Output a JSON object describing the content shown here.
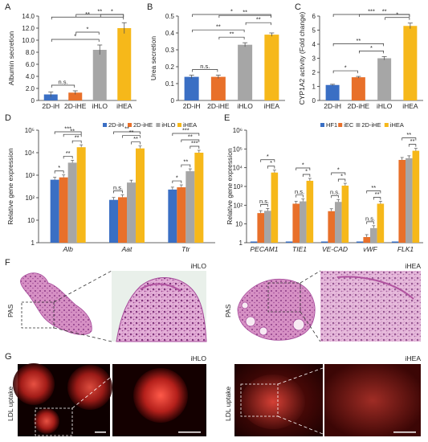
{
  "chart_data": [
    {
      "id": "A",
      "type": "bar",
      "panel_label": "A",
      "categories": [
        "2D-iH",
        "2D-iHE",
        "iHLO",
        "iHEA"
      ],
      "values": [
        1.0,
        1.3,
        8.4,
        12.0
      ],
      "errors": [
        0.4,
        0.3,
        0.8,
        0.9
      ],
      "colors": [
        "#3a6fc4",
        "#e8702a",
        "#a6a6a6",
        "#f6b81a"
      ],
      "ylabel": "Albumin secretion",
      "ylim": [
        0,
        14
      ],
      "yticks": [
        "0",
        "2.0",
        "4.0",
        "6.0",
        "8.0",
        "10.0",
        "12.0",
        "14.0"
      ],
      "ytick_values": [
        0,
        2,
        4,
        6,
        8,
        10,
        12,
        14
      ],
      "scale": "linear",
      "brackets": [
        {
          "from": 0,
          "to": 1,
          "label": "n.s."
        },
        {
          "from": 0,
          "to": 2,
          "label": "*"
        },
        {
          "from": 1,
          "to": 2,
          "label": "*"
        },
        {
          "from": 0,
          "to": 3,
          "label": "**"
        },
        {
          "from": 1,
          "to": 3,
          "label": "**"
        },
        {
          "from": 2,
          "to": 3,
          "label": "*"
        }
      ]
    },
    {
      "id": "B",
      "type": "bar",
      "panel_label": "B",
      "categories": [
        "2D-iH",
        "2D-iHE",
        "iHLO",
        "iHEA"
      ],
      "values": [
        0.14,
        0.14,
        0.33,
        0.39
      ],
      "errors": [
        0.01,
        0.01,
        0.012,
        0.01
      ],
      "colors": [
        "#3a6fc4",
        "#e8702a",
        "#a6a6a6",
        "#f6b81a"
      ],
      "ylabel": "Urea secretion",
      "ylim": [
        0,
        0.5
      ],
      "yticks": [
        "0",
        "0.1",
        "0.2",
        "0.3",
        "0.4",
        "0.5"
      ],
      "ytick_values": [
        0,
        0.1,
        0.2,
        0.3,
        0.4,
        0.5
      ],
      "scale": "linear",
      "brackets": [
        {
          "from": 0,
          "to": 1,
          "label": "n.s."
        },
        {
          "from": 1,
          "to": 2,
          "label": "**"
        },
        {
          "from": 0,
          "to": 2,
          "label": "**"
        },
        {
          "from": 2,
          "to": 3,
          "label": "**"
        },
        {
          "from": 1,
          "to": 3,
          "label": "**"
        },
        {
          "from": 0,
          "to": 3,
          "label": "*"
        }
      ]
    },
    {
      "id": "C",
      "type": "bar",
      "panel_label": "C",
      "categories": [
        "2D-iH",
        "2D-iHE",
        "iHLO",
        "iHEA"
      ],
      "values": [
        1.1,
        1.65,
        3.0,
        5.3
      ],
      "errors": [
        0.05,
        0.06,
        0.12,
        0.2
      ],
      "colors": [
        "#3a6fc4",
        "#e8702a",
        "#a6a6a6",
        "#f6b81a"
      ],
      "ylabel": "CYP1A2 activity (Fold change)",
      "ylim": [
        0,
        6
      ],
      "yticks": [
        "0",
        "1",
        "2",
        "3",
        "4",
        "5",
        "6"
      ],
      "ytick_values": [
        0,
        1,
        2,
        3,
        4,
        5,
        6
      ],
      "scale": "linear",
      "brackets": [
        {
          "from": 0,
          "to": 1,
          "label": "*"
        },
        {
          "from": 1,
          "to": 2,
          "label": "*"
        },
        {
          "from": 0,
          "to": 2,
          "label": "**"
        },
        {
          "from": 2,
          "to": 3,
          "label": "*"
        },
        {
          "from": 1,
          "to": 3,
          "label": "**"
        },
        {
          "from": 0,
          "to": 3,
          "label": "***"
        }
      ]
    },
    {
      "id": "D",
      "type": "bar",
      "panel_label": "D",
      "groups": [
        "Alb",
        "Aat",
        "Ttr"
      ],
      "series": [
        {
          "name": "2D-iH",
          "color": "#3a6fc4",
          "values": [
            630,
            80,
            230
          ]
        },
        {
          "name": "2D-iHE",
          "color": "#e8702a",
          "values": [
            800,
            105,
            290
          ]
        },
        {
          "name": "iHLO",
          "color": "#a6a6a6",
          "values": [
            3600,
            470,
            1500
          ]
        },
        {
          "name": "iHEA",
          "color": "#f6b81a",
          "values": [
            17500,
            15500,
            10000
          ]
        }
      ],
      "ylabel": "Relative gene expression",
      "ylim": [
        1,
        100000
      ],
      "yticks": [
        "1",
        "10",
        "10²",
        "10³",
        "10⁴",
        "10⁵"
      ],
      "ytick_values": [
        1,
        10,
        100,
        1000,
        10000,
        100000
      ],
      "scale": "log",
      "group_brackets": [
        [
          {
            "from": 0,
            "to": 1,
            "label": "*"
          },
          {
            "from": 1,
            "to": 2,
            "label": "**"
          },
          {
            "from": 2,
            "to": 3,
            "label": "**"
          },
          {
            "from": 1,
            "to": 3,
            "label": "**"
          },
          {
            "from": 0,
            "to": 3,
            "label": "***"
          }
        ],
        [
          {
            "from": 0,
            "to": 1,
            "label": "n.s."
          },
          {
            "from": 2,
            "to": 3,
            "label": "**"
          },
          {
            "from": 1,
            "to": 3,
            "label": "**"
          },
          {
            "from": 0,
            "to": 3,
            "label": "**"
          }
        ],
        [
          {
            "from": 0,
            "to": 1,
            "label": "*"
          },
          {
            "from": 1,
            "to": 2,
            "label": "**"
          },
          {
            "from": 2,
            "to": 3,
            "label": "***"
          },
          {
            "from": 1,
            "to": 3,
            "label": "**"
          },
          {
            "from": 0,
            "to": 3,
            "label": "***"
          }
        ]
      ]
    },
    {
      "id": "E",
      "type": "bar",
      "panel_label": "E",
      "groups": [
        "PECAM1",
        "TIE1",
        "VE-CAD",
        "vWF",
        "FLK1"
      ],
      "series": [
        {
          "name": "HF1",
          "color": "#3a6fc4",
          "values": [
            1,
            1,
            1,
            1,
            1
          ]
        },
        {
          "name": "iEC",
          "color": "#e8702a",
          "values": [
            38,
            120,
            48,
            2,
            26000
          ]
        },
        {
          "name": "2D-iHE",
          "color": "#a6a6a6",
          "values": [
            50,
            160,
            150,
            6,
            32000
          ]
        },
        {
          "name": "iHEA",
          "color": "#f6b81a",
          "values": [
            5500,
            2000,
            1100,
            120,
            80000
          ]
        }
      ],
      "ylabel": "Relative gene expression",
      "ylim": [
        1,
        1000000
      ],
      "yticks": [
        "1",
        "10",
        "10²",
        "10³",
        "10⁴",
        "10⁵",
        "10⁶"
      ],
      "ytick_values": [
        1,
        10,
        100,
        1000,
        10000,
        100000,
        1000000
      ],
      "scale": "log",
      "group_brackets": [
        [
          {
            "from": 1,
            "to": 2,
            "label": "n.s."
          },
          {
            "from": 2,
            "to": 3,
            "label": "*"
          },
          {
            "from": 1,
            "to": 3,
            "label": "*"
          }
        ],
        [
          {
            "from": 1,
            "to": 2,
            "label": "n.s."
          },
          {
            "from": 2,
            "to": 3,
            "label": "*"
          },
          {
            "from": 1,
            "to": 3,
            "label": "*"
          }
        ],
        [
          {
            "from": 1,
            "to": 2,
            "label": "n.s."
          },
          {
            "from": 2,
            "to": 3,
            "label": "*"
          },
          {
            "from": 1,
            "to": 3,
            "label": "*"
          }
        ],
        [
          {
            "from": 1,
            "to": 2,
            "label": "n.s."
          },
          {
            "from": 2,
            "to": 3,
            "label": "**"
          },
          {
            "from": 1,
            "to": 3,
            "label": "**"
          }
        ],
        [
          {
            "from": 2,
            "to": 3,
            "label": "**"
          },
          {
            "from": 1,
            "to": 3,
            "label": "**"
          }
        ]
      ]
    }
  ],
  "image_panels": {
    "F": {
      "label": "F",
      "side_label": "PAS",
      "left_title": "iHLO",
      "right_title": "iHEA"
    },
    "G": {
      "label": "G",
      "side_label": "LDL uptake",
      "left_title": "iHLO",
      "right_title": "iHEA"
    }
  },
  "colors": {
    "blue": "#3a6fc4",
    "orange": "#e8702a",
    "gray": "#a6a6a6",
    "yellow": "#f6b81a",
    "pas_pink": "#c87cb4",
    "ldl_red": "#d9342b"
  }
}
